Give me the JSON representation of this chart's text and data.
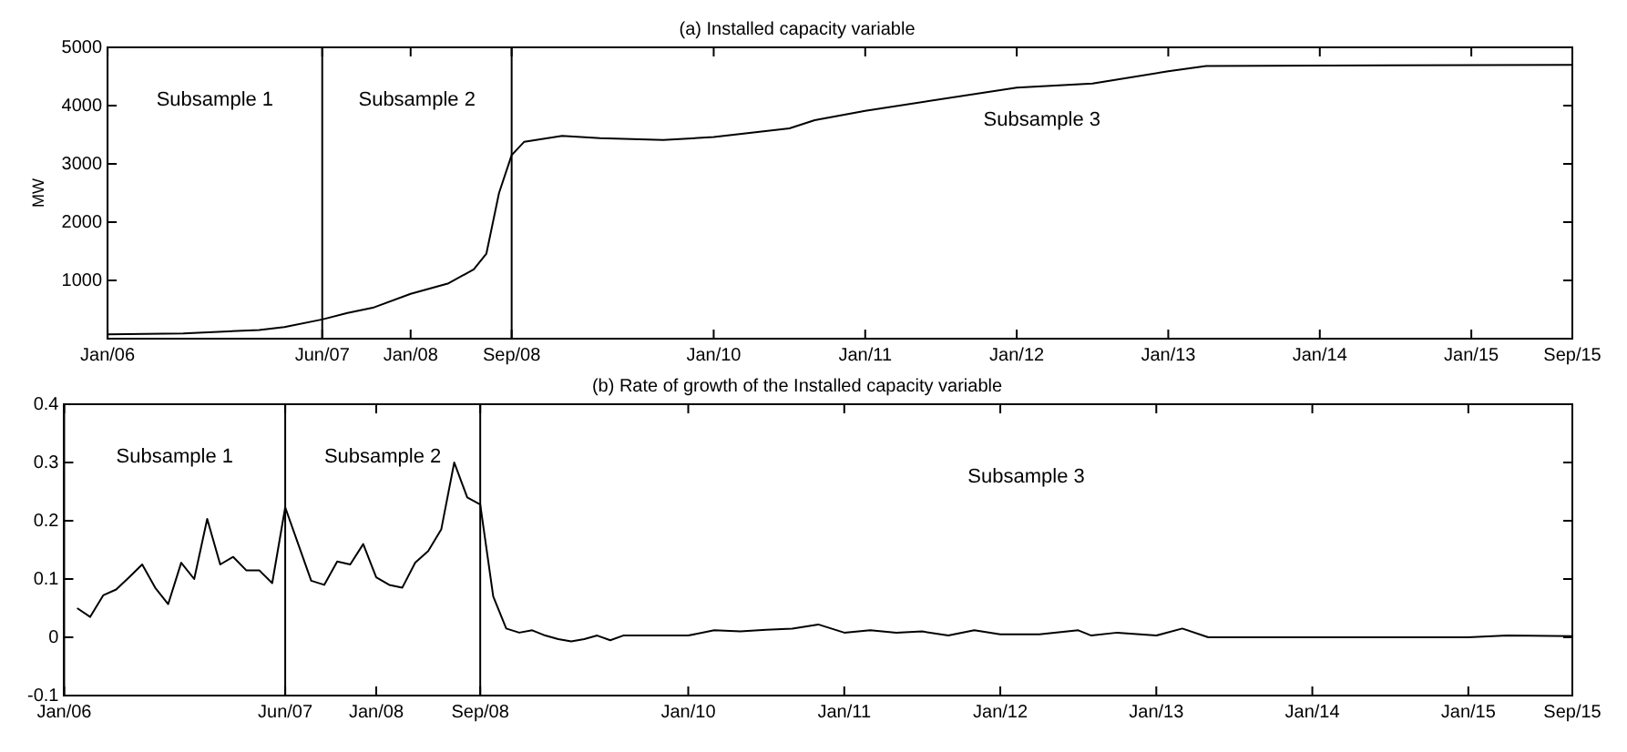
{
  "chart_data": [
    {
      "type": "line",
      "title": "(a) Installed capacity variable",
      "ylabel": "MW",
      "series": [
        {
          "color": "#000000",
          "x": [
            "2006-01",
            "2006-07",
            "2007-01",
            "2007-03",
            "2007-06",
            "2007-08",
            "2007-10",
            "2008-01",
            "2008-04",
            "2008-06",
            "2008-07",
            "2008-08",
            "2008-09",
            "2008-10",
            "2009-01",
            "2009-04",
            "2009-09",
            "2010-01",
            "2010-07",
            "2010-09",
            "2011-01",
            "2012-01",
            "2012-07",
            "2013-01",
            "2013-04",
            "2015-09"
          ],
          "values": [
            75,
            90,
            150,
            200,
            330,
            440,
            530,
            770,
            950,
            1190,
            1460,
            2500,
            3150,
            3380,
            3480,
            3440,
            3410,
            3460,
            3610,
            3750,
            3910,
            4310,
            4380,
            4590,
            4680,
            4700
          ]
        }
      ],
      "xlim": [
        "2006-01",
        "2015-09"
      ],
      "xticks": [
        {
          "value": "2006-01",
          "label": "Jan/06"
        },
        {
          "value": "2007-06",
          "label": "Jun/07"
        },
        {
          "value": "2008-01",
          "label": "Jan/08"
        },
        {
          "value": "2008-09",
          "label": "Sep/08"
        },
        {
          "value": "2010-01",
          "label": "Jan/10"
        },
        {
          "value": "2011-01",
          "label": "Jan/11"
        },
        {
          "value": "2012-01",
          "label": "Jan/12"
        },
        {
          "value": "2013-01",
          "label": "Jan/13"
        },
        {
          "value": "2014-01",
          "label": "Jan/14"
        },
        {
          "value": "2015-01",
          "label": "Jan/15"
        },
        {
          "value": "2015-09",
          "label": "Sep/15"
        }
      ],
      "ylim": [
        0,
        5000
      ],
      "yticks": [
        1000,
        2000,
        3000,
        4000,
        5000
      ],
      "ref_lines": [
        {
          "axis": "x",
          "value": "2007-06",
          "color": "#000000"
        },
        {
          "axis": "x",
          "value": "2008-09",
          "color": "#000000"
        }
      ],
      "annotations": [
        "Subsample 1",
        "Subsample 2",
        "Subsample 3"
      ],
      "grid": false,
      "legend": false
    },
    {
      "type": "line",
      "title": "(b) Rate of growth of the Installed capacity variable",
      "series": [
        {
          "color": "#000000",
          "x": [
            "2006-02",
            "2006-03",
            "2006-04",
            "2006-05",
            "2006-06",
            "2006-07",
            "2006-08",
            "2006-09",
            "2006-10",
            "2006-11",
            "2006-12",
            "2007-01",
            "2007-02",
            "2007-03",
            "2007-04",
            "2007-05",
            "2007-06",
            "2007-07",
            "2007-08",
            "2007-09",
            "2007-10",
            "2007-11",
            "2007-12",
            "2008-01",
            "2008-02",
            "2008-03",
            "2008-04",
            "2008-05",
            "2008-06",
            "2008-07",
            "2008-08",
            "2008-09",
            "2008-10",
            "2008-11",
            "2008-12",
            "2009-01",
            "2009-02",
            "2009-03",
            "2009-04",
            "2009-05",
            "2009-06",
            "2009-07",
            "2009-08",
            "2009-10",
            "2010-01",
            "2010-03",
            "2010-05",
            "2010-07",
            "2010-09",
            "2010-11",
            "2011-01",
            "2011-03",
            "2011-05",
            "2011-07",
            "2011-09",
            "2011-11",
            "2012-01",
            "2012-04",
            "2012-07",
            "2012-08",
            "2012-10",
            "2013-01",
            "2013-03",
            "2013-05",
            "2014-01",
            "2015-01",
            "2015-04",
            "2015-09"
          ],
          "values": [
            0.05,
            0.035,
            0.072,
            0.082,
            0.103,
            0.125,
            0.085,
            0.057,
            0.128,
            0.1,
            0.203,
            0.125,
            0.138,
            0.115,
            0.115,
            0.093,
            0.223,
            0.16,
            0.097,
            0.09,
            0.13,
            0.125,
            0.16,
            0.103,
            0.09,
            0.085,
            0.128,
            0.148,
            0.185,
            0.3,
            0.24,
            0.228,
            0.07,
            0.015,
            0.008,
            0.012,
            0.003,
            -0.003,
            -0.007,
            -0.003,
            0.003,
            -0.005,
            0.003,
            0.003,
            0.003,
            0.012,
            0.01,
            0.013,
            0.015,
            0.022,
            0.008,
            0.012,
            0.008,
            0.01,
            0.003,
            0.012,
            0.005,
            0.005,
            0.012,
            0.003,
            0.008,
            0.003,
            0.015,
            0,
            0,
            0,
            0.003,
            0.002
          ]
        }
      ],
      "xlim": [
        "2006-01",
        "2015-09"
      ],
      "xticks": [
        {
          "value": "2006-01",
          "label": "Jan/06"
        },
        {
          "value": "2007-06",
          "label": "Jun/07"
        },
        {
          "value": "2008-01",
          "label": "Jan/08"
        },
        {
          "value": "2008-09",
          "label": "Sep/08"
        },
        {
          "value": "2010-01",
          "label": "Jan/10"
        },
        {
          "value": "2011-01",
          "label": "Jan/11"
        },
        {
          "value": "2012-01",
          "label": "Jan/12"
        },
        {
          "value": "2013-01",
          "label": "Jan/13"
        },
        {
          "value": "2014-01",
          "label": "Jan/14"
        },
        {
          "value": "2015-01",
          "label": "Jan/15"
        },
        {
          "value": "2015-09",
          "label": "Sep/15"
        }
      ],
      "ylim": [
        -0.1,
        0.4
      ],
      "yticks": [
        -0.1,
        0,
        0.1,
        0.2,
        0.3,
        0.4
      ],
      "ref_lines": [
        {
          "axis": "x",
          "value": "2007-06",
          "color": "#000000"
        },
        {
          "axis": "x",
          "value": "2008-09",
          "color": "#000000"
        }
      ],
      "annotations": [
        "Subsample 1",
        "Subsample 2",
        "Subsample 3"
      ],
      "grid": false,
      "legend": false
    }
  ]
}
